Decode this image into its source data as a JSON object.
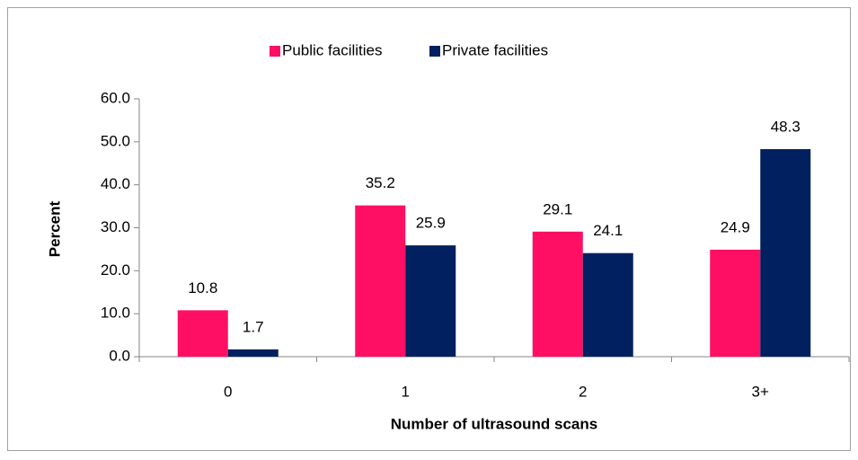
{
  "chart_data": {
    "type": "bar",
    "categories": [
      "0",
      "1",
      "2",
      "3+"
    ],
    "series": [
      {
        "name": "Public facilities",
        "color": "#ff0f64",
        "values": [
          10.8,
          35.2,
          29.1,
          24.9
        ]
      },
      {
        "name": "Private facilities",
        "color": "#002060",
        "values": [
          1.7,
          25.9,
          24.1,
          48.3
        ]
      }
    ],
    "ylabel": "Percent",
    "xlabel": "Number of ultrasound scans",
    "ylim": [
      0,
      60
    ],
    "yticks": [
      {
        "value": 0,
        "label": "0.0"
      },
      {
        "value": 10,
        "label": "10.0"
      },
      {
        "value": 20,
        "label": "20.0"
      },
      {
        "value": 30,
        "label": "30.0"
      },
      {
        "value": 40,
        "label": "40.0"
      },
      {
        "value": 50,
        "label": "50.0"
      },
      {
        "value": 60,
        "label": "60.0"
      }
    ],
    "legend": "top"
  }
}
